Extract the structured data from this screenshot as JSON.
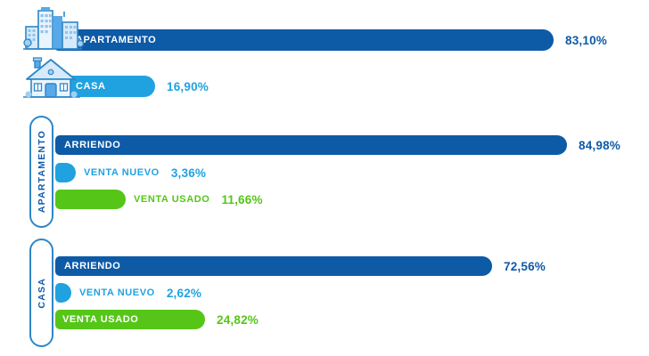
{
  "colors": {
    "dark_blue": "#0D5AA7",
    "light_blue": "#21A2E0",
    "green": "#55C617",
    "pill_border": "#2E86C8",
    "white_text": "#FFFFFF"
  },
  "icons": {
    "apartment": "apartment-buildings-icon",
    "house": "house-icon"
  },
  "chart_data": {
    "type": "bar",
    "orientation": "horizontal",
    "unit": "%",
    "value_format": "comma-decimal",
    "legend_position": "none",
    "axis": "none",
    "sections": [
      {
        "id": "property-type-totals",
        "group_label": "",
        "rows": [
          {
            "label": "APARTAMENTO",
            "value": 83.1,
            "display": "83,10%",
            "color": "#0D5AA7",
            "icon": "apartment-buildings-icon",
            "label_inside": true
          },
          {
            "label": "CASA",
            "value": 16.9,
            "display": "16,90%",
            "color": "#21A2E0",
            "icon": "house-icon",
            "label_inside": true
          }
        ]
      },
      {
        "id": "apartamento-breakdown",
        "group_label": "APARTAMENTO",
        "rows": [
          {
            "label": "ARRIENDO",
            "value": 84.98,
            "display": "84,98%",
            "color": "#0D5AA7",
            "label_inside": true
          },
          {
            "label": "VENTA NUEVO",
            "value": 3.36,
            "display": "3,36%",
            "color": "#21A2E0",
            "label_inside": false
          },
          {
            "label": "VENTA USADO",
            "value": 11.66,
            "display": "11,66%",
            "color": "#55C617",
            "label_inside": false
          }
        ]
      },
      {
        "id": "casa-breakdown",
        "group_label": "CASA",
        "rows": [
          {
            "label": "ARRIENDO",
            "value": 72.56,
            "display": "72,56%",
            "color": "#0D5AA7",
            "label_inside": true
          },
          {
            "label": "VENTA NUEVO",
            "value": 2.62,
            "display": "2,62%",
            "color": "#21A2E0",
            "label_inside": false
          },
          {
            "label": "VENTA USADO",
            "value": 24.82,
            "display": "24,82%",
            "color": "#55C617",
            "label_inside": true
          }
        ]
      }
    ]
  }
}
